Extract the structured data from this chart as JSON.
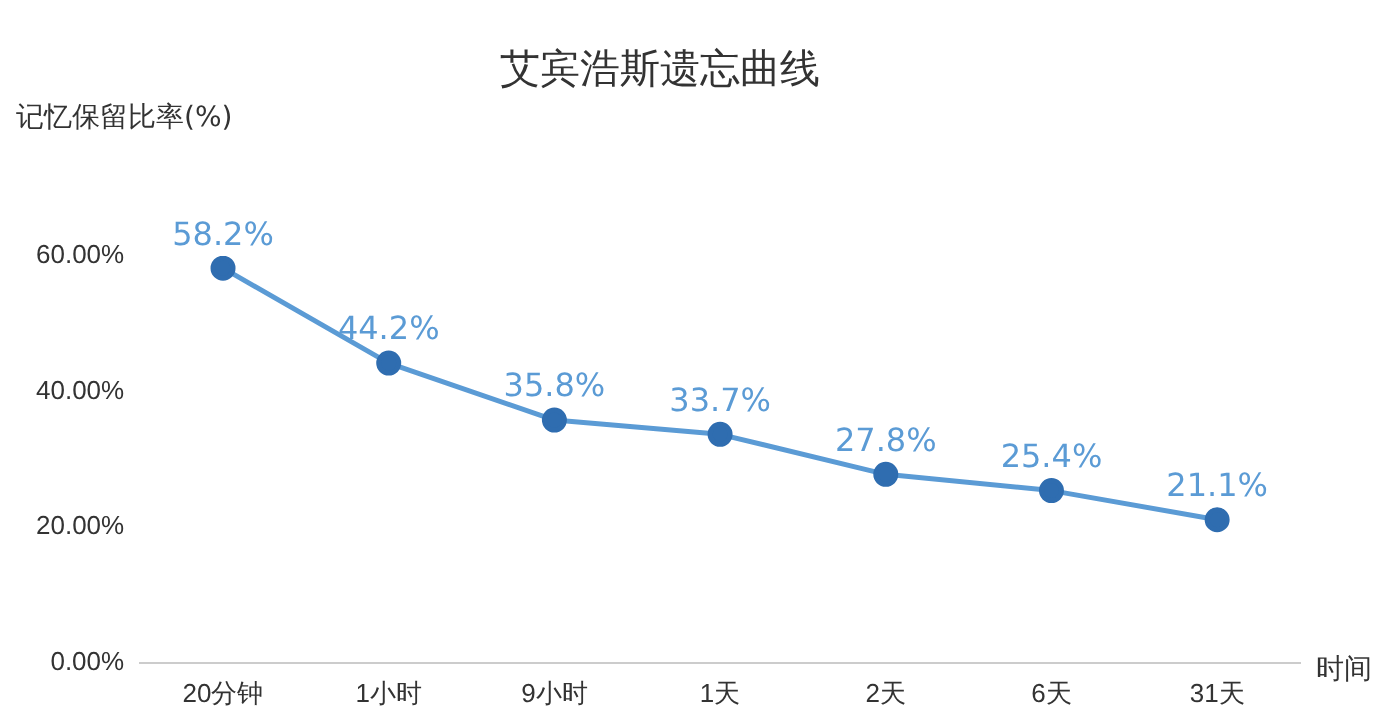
{
  "chart_data": {
    "type": "line",
    "title": "艾宾浩斯遗忘曲线",
    "ylabel": "记忆保留比率(%)",
    "xlabel": "时间",
    "categories": [
      "20分钟",
      "1小时",
      "9小时",
      "1天",
      "2天",
      "6天",
      "31天"
    ],
    "series": [
      {
        "color": "#5b9bd5",
        "values": [
          58.2,
          44.2,
          35.8,
          33.7,
          27.8,
          25.4,
          21.1
        ],
        "value_labels": [
          "58.2%",
          "44.2%",
          "35.8%",
          "33.7%",
          "27.8%",
          "25.4%",
          "21.1%"
        ]
      }
    ],
    "ylim": [
      0,
      60
    ],
    "yticks": [
      {
        "value": 0,
        "label": "0.00%"
      },
      {
        "value": 20,
        "label": "20.00%"
      },
      {
        "value": 40,
        "label": "40.00%"
      },
      {
        "value": 60,
        "label": "60.00%"
      }
    ],
    "grid": false,
    "legend": false,
    "marker": "circle",
    "line_style": "solid"
  }
}
